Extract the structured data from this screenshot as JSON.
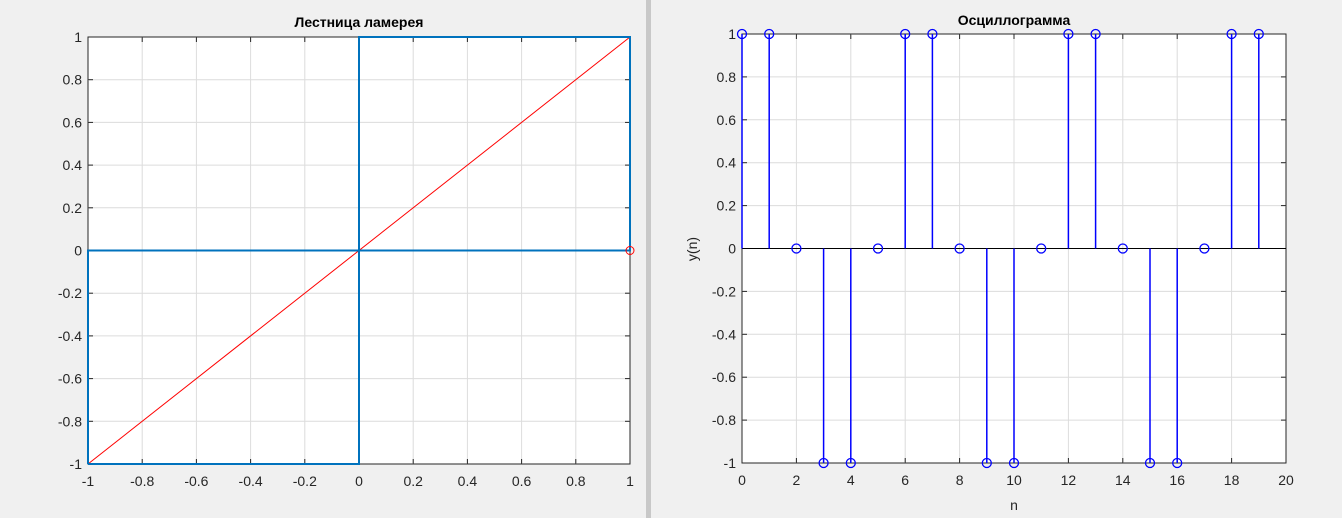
{
  "chart_data": [
    {
      "type": "line",
      "title": "Лестница ламерея",
      "xlabel": "",
      "ylabel": "",
      "xlim": [
        -1,
        1
      ],
      "ylim": [
        -1,
        1
      ],
      "xticks": [
        -1,
        -0.8,
        -0.6,
        -0.4,
        -0.2,
        0,
        0.2,
        0.4,
        0.6,
        0.8,
        1
      ],
      "yticks": [
        -1,
        -0.8,
        -0.6,
        -0.4,
        -0.2,
        0,
        0.2,
        0.4,
        0.6,
        0.8,
        1
      ],
      "grid": true,
      "series": [
        {
          "color": "#ff0000",
          "style": "line",
          "x": [
            -1,
            1
          ],
          "y": [
            -1,
            1
          ]
        },
        {
          "color": "#0072bd",
          "style": "line",
          "x": [
            -1,
            -1,
            0,
            0,
            1,
            1,
            -1
          ],
          "y": [
            -1,
            0,
            0,
            1,
            1,
            0,
            0
          ]
        },
        {
          "color": "#0072bd",
          "style": "line",
          "x": [
            -1,
            0,
            0
          ],
          "y": [
            -1,
            -1,
            0
          ]
        },
        {
          "color": "#ff0000",
          "style": "marker",
          "x": [
            1
          ],
          "y": [
            0
          ]
        }
      ]
    },
    {
      "type": "stem",
      "title": "Осциллограмма",
      "xlabel": "n",
      "ylabel": "y(n)",
      "xlim": [
        0,
        20
      ],
      "ylim": [
        -1,
        1
      ],
      "xticks": [
        0,
        2,
        4,
        6,
        8,
        10,
        12,
        14,
        16,
        18,
        20
      ],
      "yticks": [
        -1,
        -0.8,
        -0.6,
        -0.4,
        -0.2,
        0,
        0.2,
        0.4,
        0.6,
        0.8,
        1
      ],
      "grid": true,
      "series": [
        {
          "color": "#0000ff",
          "x": [
            0,
            1,
            2,
            3,
            4,
            5,
            6,
            7,
            8,
            9,
            10,
            11,
            12,
            13,
            14,
            15,
            16,
            17,
            18,
            19
          ],
          "y": [
            1,
            1,
            0,
            -1,
            -1,
            0,
            1,
            1,
            0,
            -1,
            -1,
            0,
            1,
            1,
            0,
            -1,
            -1,
            0,
            1,
            1
          ]
        }
      ]
    }
  ]
}
